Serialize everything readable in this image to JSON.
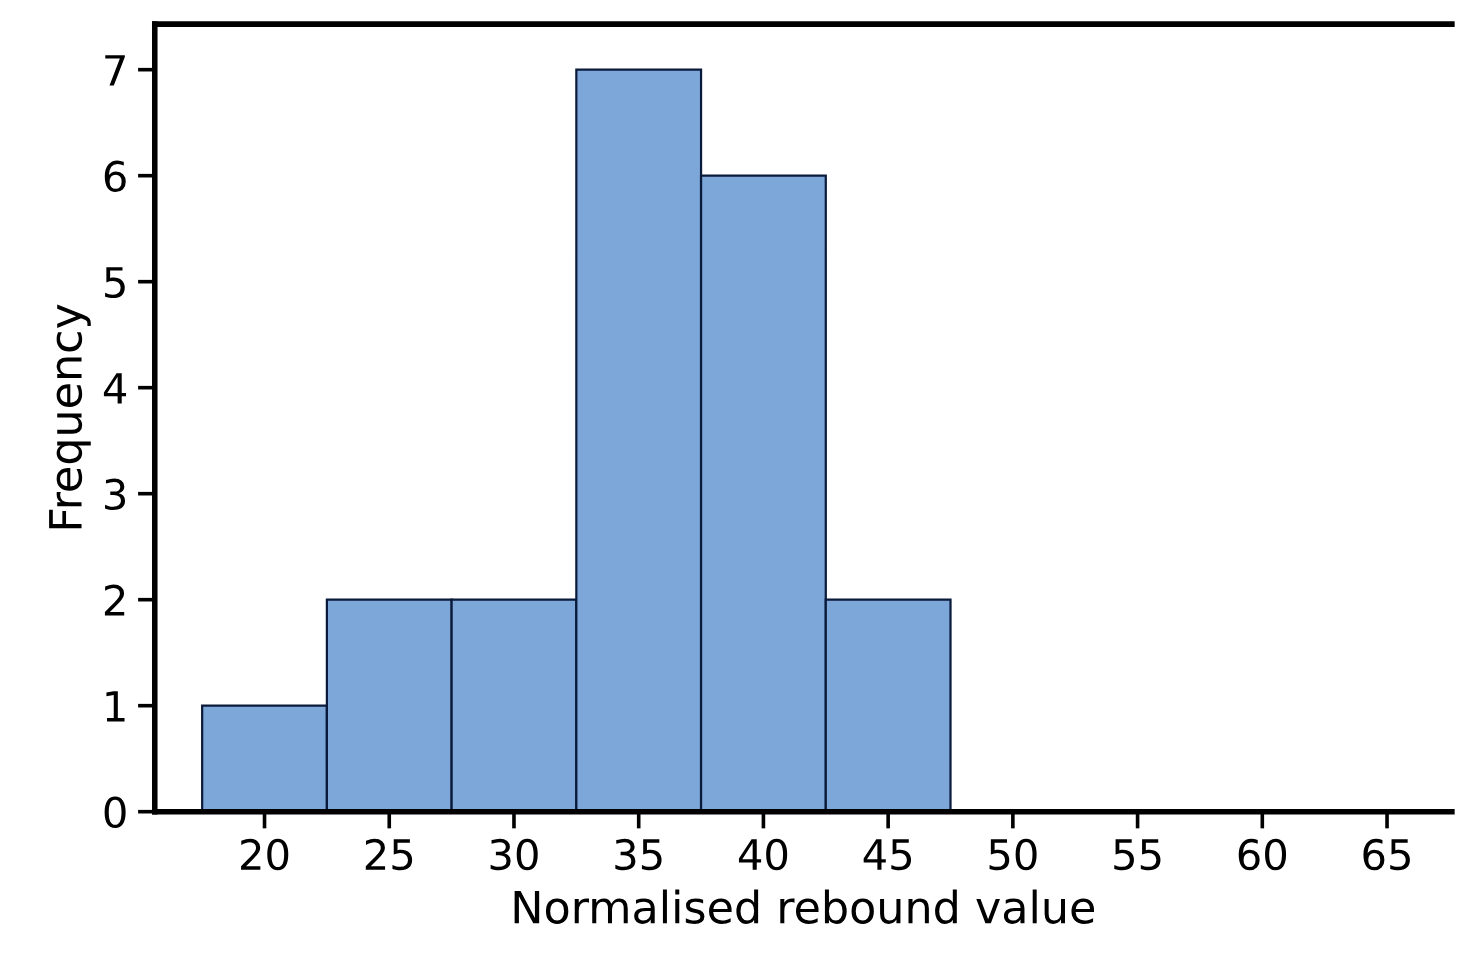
{
  "chart_data": {
    "type": "histogram",
    "xlabel": "Normalised rebound value",
    "ylabel": "Frequency",
    "bins": [
      17.5,
      22.5,
      27.5,
      32.5,
      37.5,
      42.5,
      47.5,
      52.5,
      57.5,
      62.5,
      67.5
    ],
    "values": [
      1,
      2,
      2,
      7,
      6,
      2,
      0,
      0,
      0,
      0
    ],
    "color": "#7da7d9",
    "xlim": [
      15.6,
      67.6
    ],
    "xticks": [
      20,
      25,
      30,
      35,
      40,
      45,
      50,
      55,
      60,
      65
    ],
    "ylim": [
      0,
      7.43
    ],
    "yticks": [
      0,
      1,
      2,
      3,
      4,
      5,
      6,
      7
    ],
    "grid": false
  }
}
